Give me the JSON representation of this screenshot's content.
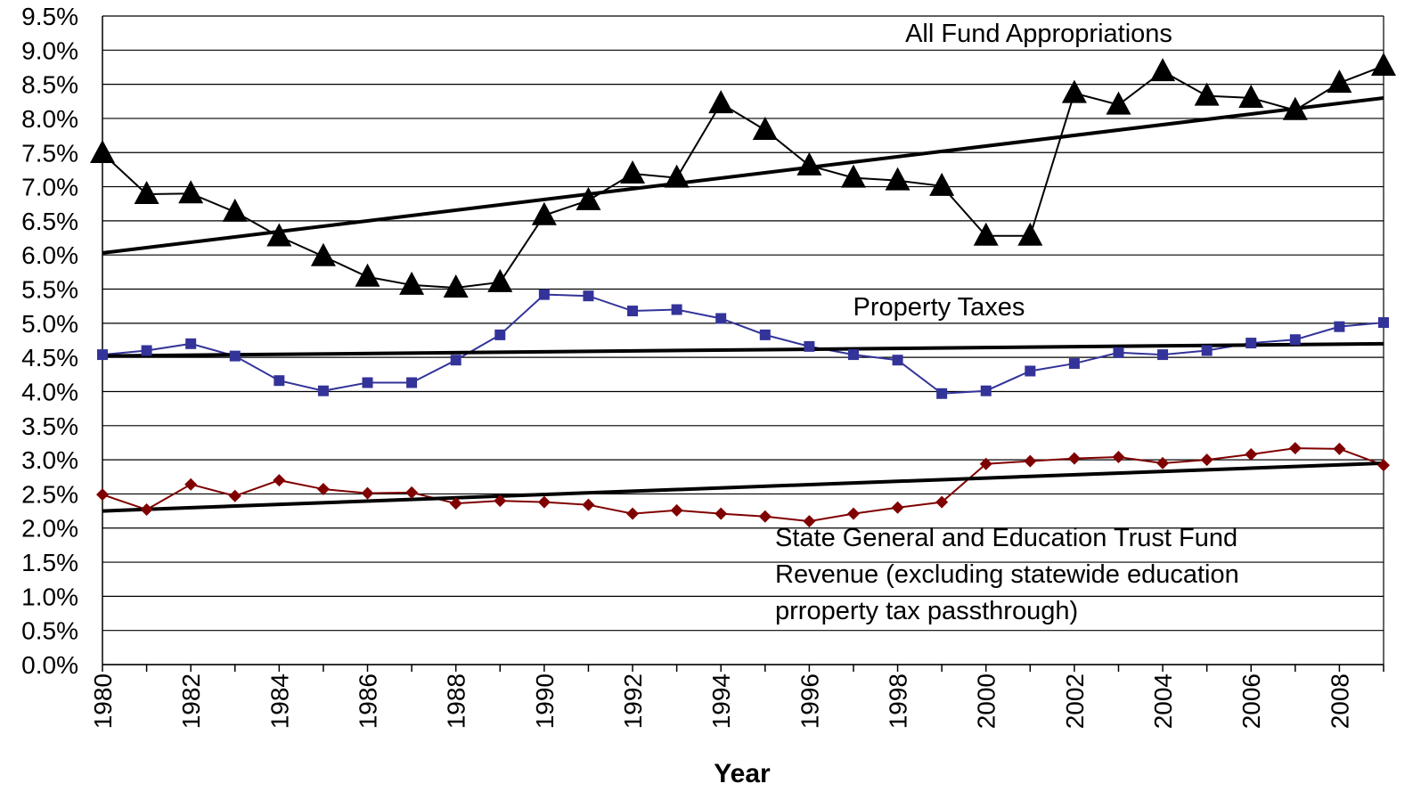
{
  "chart_data": {
    "type": "line",
    "x_label": "Year",
    "x": [
      1980,
      1981,
      1982,
      1983,
      1984,
      1985,
      1986,
      1987,
      1988,
      1989,
      1990,
      1991,
      1992,
      1993,
      1994,
      1995,
      1996,
      1997,
      1998,
      1999,
      2000,
      2001,
      2002,
      2003,
      2004,
      2005,
      2006,
      2007,
      2008,
      2009
    ],
    "xlim": [
      1980,
      2009
    ],
    "xticks": [
      1980,
      1982,
      1984,
      1986,
      1988,
      1990,
      1992,
      1994,
      1996,
      1998,
      2000,
      2002,
      2004,
      2006,
      2008
    ],
    "ylim": [
      0,
      9.5
    ],
    "yticks": [
      {
        "value": 0,
        "label": "0.0%"
      },
      {
        "value": 0.5,
        "label": "0.5%"
      },
      {
        "value": 1,
        "label": "1.0%"
      },
      {
        "value": 1.5,
        "label": "1.5%"
      },
      {
        "value": 2,
        "label": "2.0%"
      },
      {
        "value": 2.5,
        "label": "2.5%"
      },
      {
        "value": 3,
        "label": "3.0%"
      },
      {
        "value": 3.5,
        "label": "3.5%"
      },
      {
        "value": 4,
        "label": "4.0%"
      },
      {
        "value": 4.5,
        "label": "4.5%"
      },
      {
        "value": 5,
        "label": "5.0%"
      },
      {
        "value": 5.5,
        "label": "5.5%"
      },
      {
        "value": 6,
        "label": "6.0%"
      },
      {
        "value": 6.5,
        "label": "6.5%"
      },
      {
        "value": 7,
        "label": "7.0%"
      },
      {
        "value": 7.5,
        "label": "7.5%"
      },
      {
        "value": 8,
        "label": "8.0%"
      },
      {
        "value": 8.5,
        "label": "8.5%"
      },
      {
        "value": 9,
        "label": "9.0%"
      },
      {
        "value": 9.5,
        "label": "9.5%"
      }
    ],
    "grid": true,
    "series": [
      {
        "name": "All Fund Appropriations",
        "color": "#000000",
        "marker": "triangle",
        "values": [
          7.49,
          6.89,
          6.9,
          6.63,
          6.27,
          5.98,
          5.68,
          5.56,
          5.52,
          5.6,
          6.58,
          6.8,
          7.19,
          7.13,
          8.22,
          7.83,
          7.31,
          7.13,
          7.09,
          7.01,
          6.28,
          6.28,
          8.37,
          8.2,
          8.69,
          8.33,
          8.3,
          8.12,
          8.52,
          8.77
        ],
        "trend": [
          6.03,
          8.3
        ]
      },
      {
        "name": "Property Taxes",
        "color": "#333399",
        "marker": "square",
        "values": [
          4.54,
          4.6,
          4.7,
          4.52,
          4.16,
          4.01,
          4.13,
          4.13,
          4.46,
          4.83,
          5.42,
          5.4,
          5.18,
          5.2,
          5.07,
          4.83,
          4.66,
          4.54,
          4.46,
          3.97,
          4.01,
          4.3,
          4.41,
          4.57,
          4.54,
          4.6,
          4.71,
          4.76,
          4.95,
          5.01
        ],
        "trend": [
          4.52,
          4.7
        ]
      },
      {
        "name": "State General and Education Trust Fund Revenue (excluding statewide education prroperty tax passthrough)",
        "color": "#800000",
        "marker": "diamond",
        "values": [
          2.49,
          2.27,
          2.64,
          2.47,
          2.7,
          2.57,
          2.51,
          2.52,
          2.36,
          2.4,
          2.38,
          2.34,
          2.21,
          2.26,
          2.21,
          2.17,
          2.1,
          2.21,
          2.3,
          2.38,
          2.94,
          2.98,
          3.02,
          3.04,
          2.95,
          3.0,
          3.08,
          3.17,
          3.16,
          2.92
        ],
        "trend": [
          2.25,
          2.95
        ]
      }
    ]
  }
}
